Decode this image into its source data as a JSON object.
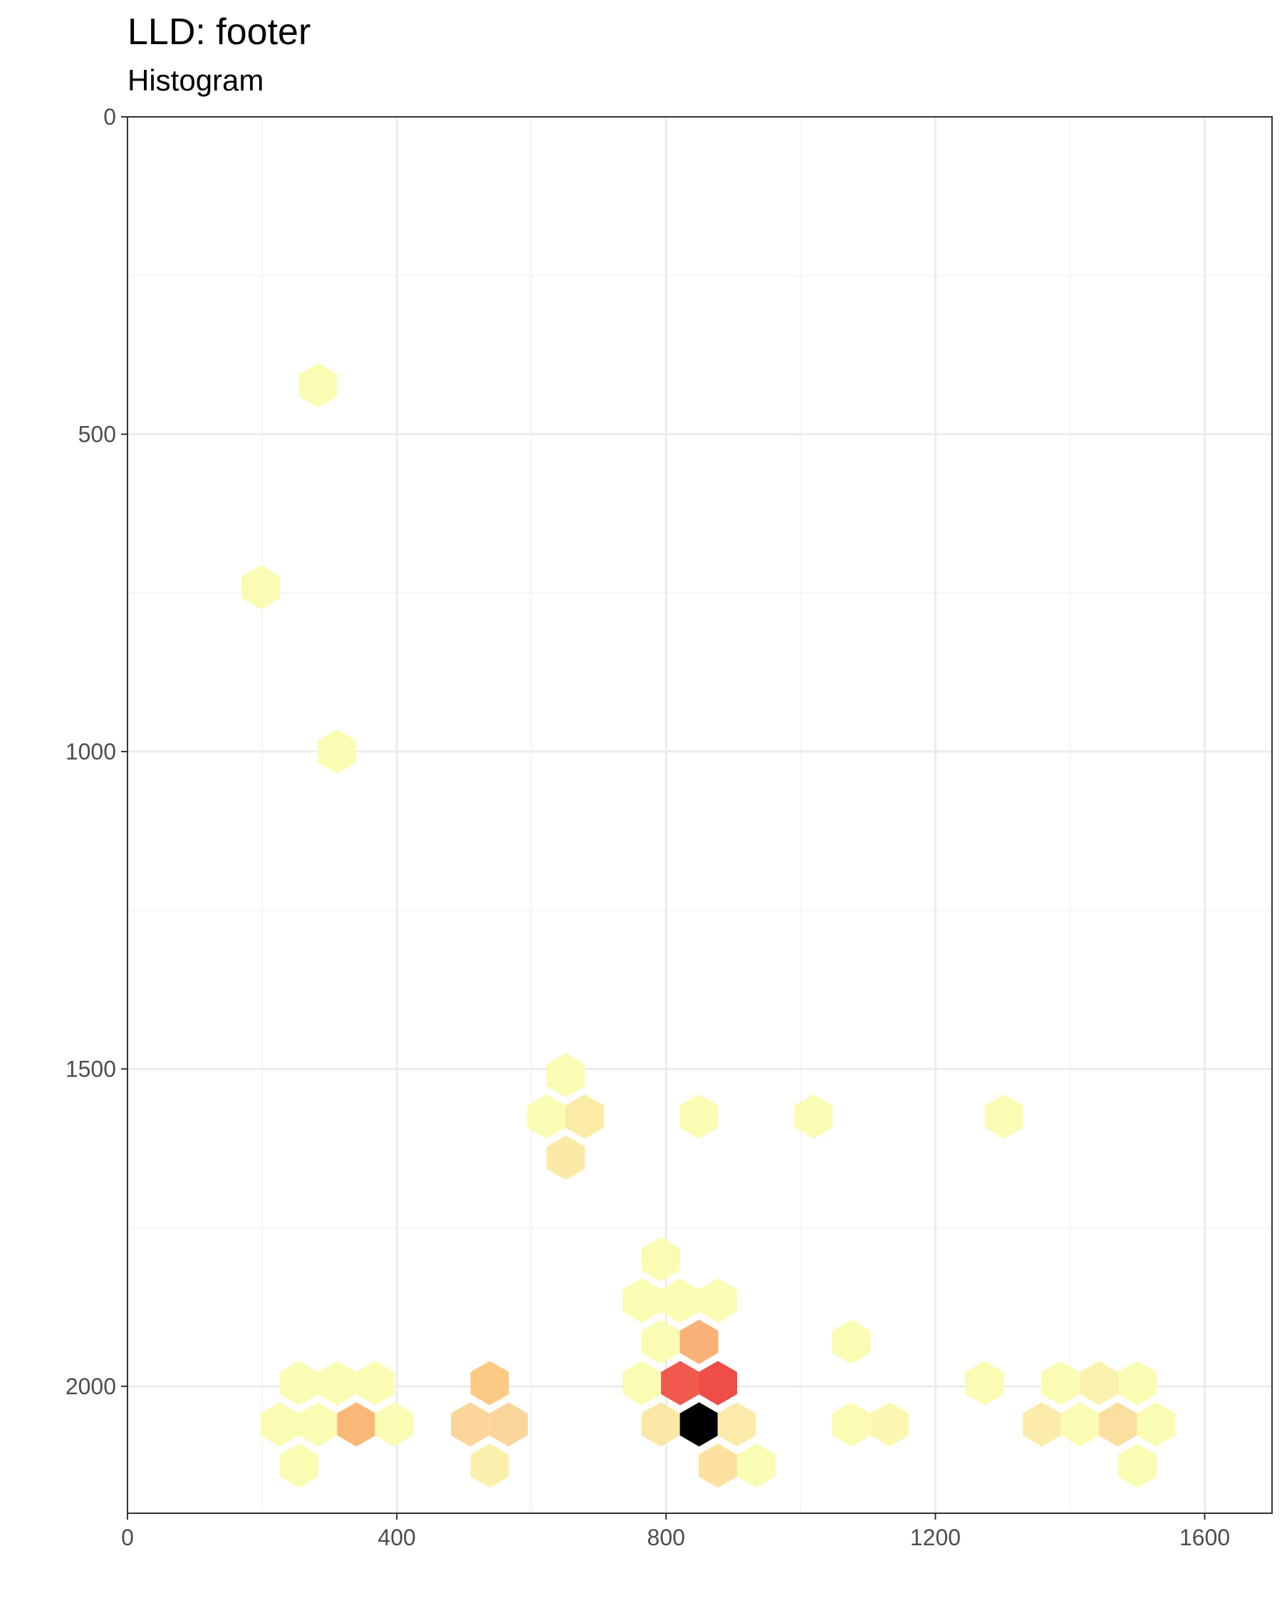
{
  "chart_data": {
    "type": "hexbin",
    "title": "LLD:  footer",
    "subtitle": "Histogram",
    "xlabel": "",
    "ylabel": "",
    "xlim": [
      0,
      1700
    ],
    "ylim": [
      2200,
      0
    ],
    "y_reversed": true,
    "grid": true,
    "x_ticks": [
      0,
      400,
      800,
      1200,
      1600
    ],
    "y_ticks": [
      0,
      500,
      1000,
      1500,
      2000
    ],
    "hex_width_data": 57,
    "color_scale": [
      "#ffffbf",
      "#fee08b",
      "#fdae61",
      "#f46d43",
      "#d73027",
      "#000000"
    ],
    "cells": [
      {
        "x": 283,
        "y": 423,
        "fill": "#fafcb4"
      },
      {
        "x": 198,
        "y": 741,
        "fill": "#fafcb4"
      },
      {
        "x": 311,
        "y": 1000,
        "fill": "#fafcb4"
      },
      {
        "x": 651,
        "y": 1510,
        "fill": "#fafcb4"
      },
      {
        "x": 622,
        "y": 1575,
        "fill": "#fafcb4"
      },
      {
        "x": 679,
        "y": 1575,
        "fill": "#faeca4"
      },
      {
        "x": 651,
        "y": 1640,
        "fill": "#fbeaa6"
      },
      {
        "x": 849,
        "y": 1575,
        "fill": "#fafcb4"
      },
      {
        "x": 1019,
        "y": 1575,
        "fill": "#fafcb4"
      },
      {
        "x": 1302,
        "y": 1575,
        "fill": "#fafcb4"
      },
      {
        "x": 792,
        "y": 1800,
        "fill": "#fafcb4"
      },
      {
        "x": 764,
        "y": 1865,
        "fill": "#fafcb4"
      },
      {
        "x": 821,
        "y": 1865,
        "fill": "#fafcb4"
      },
      {
        "x": 877,
        "y": 1865,
        "fill": "#fafcb4"
      },
      {
        "x": 792,
        "y": 1930,
        "fill": "#fafcb4"
      },
      {
        "x": 849,
        "y": 1930,
        "fill": "#f9b177"
      },
      {
        "x": 1075,
        "y": 1930,
        "fill": "#fafcb4"
      },
      {
        "x": 764,
        "y": 1995,
        "fill": "#fafcb4"
      },
      {
        "x": 821,
        "y": 1995,
        "fill": "#f05a4d"
      },
      {
        "x": 877,
        "y": 1995,
        "fill": "#ef4d48"
      },
      {
        "x": 255,
        "y": 1995,
        "fill": "#fafcb4"
      },
      {
        "x": 311,
        "y": 1995,
        "fill": "#fafcb4"
      },
      {
        "x": 368,
        "y": 1995,
        "fill": "#fafcb4"
      },
      {
        "x": 538,
        "y": 1995,
        "fill": "#fbca85"
      },
      {
        "x": 1273,
        "y": 1995,
        "fill": "#fafcb4"
      },
      {
        "x": 1386,
        "y": 1995,
        "fill": "#fafcb4"
      },
      {
        "x": 1443,
        "y": 1995,
        "fill": "#fbf2b0"
      },
      {
        "x": 1500,
        "y": 1995,
        "fill": "#fafcb4"
      },
      {
        "x": 226,
        "y": 2060,
        "fill": "#fafcb4"
      },
      {
        "x": 283,
        "y": 2060,
        "fill": "#fafcb4"
      },
      {
        "x": 340,
        "y": 2060,
        "fill": "#f9b877"
      },
      {
        "x": 396,
        "y": 2060,
        "fill": "#fafcb4"
      },
      {
        "x": 509,
        "y": 2060,
        "fill": "#fbd59a"
      },
      {
        "x": 566,
        "y": 2060,
        "fill": "#fbd69c"
      },
      {
        "x": 792,
        "y": 2060,
        "fill": "#fbe7a6"
      },
      {
        "x": 849,
        "y": 2060,
        "fill": "#000000"
      },
      {
        "x": 905,
        "y": 2060,
        "fill": "#fbeaaa"
      },
      {
        "x": 1075,
        "y": 2060,
        "fill": "#fafcb4"
      },
      {
        "x": 1132,
        "y": 2060,
        "fill": "#fbf7b0"
      },
      {
        "x": 1358,
        "y": 2060,
        "fill": "#fbecab"
      },
      {
        "x": 1415,
        "y": 2060,
        "fill": "#fafcb4"
      },
      {
        "x": 1471,
        "y": 2060,
        "fill": "#fbdfa0"
      },
      {
        "x": 1528,
        "y": 2060,
        "fill": "#fafcb4"
      },
      {
        "x": 255,
        "y": 2125,
        "fill": "#fafcb4"
      },
      {
        "x": 538,
        "y": 2125,
        "fill": "#fbefad"
      },
      {
        "x": 877,
        "y": 2125,
        "fill": "#fce1a0"
      },
      {
        "x": 934,
        "y": 2125,
        "fill": "#fafcb4"
      },
      {
        "x": 1500,
        "y": 2125,
        "fill": "#fafcb4"
      }
    ]
  },
  "colors": {
    "panel_border": "#333333",
    "grid_major": "#ebebeb",
    "grid_minor": "#f2f2f2",
    "tick_text": "#4d4d4d"
  }
}
